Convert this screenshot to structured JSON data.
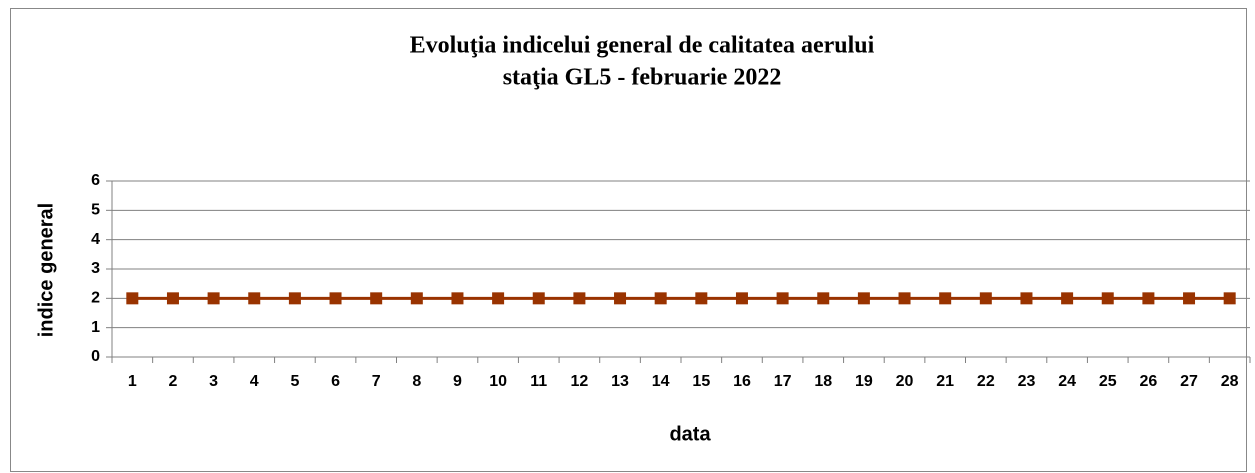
{
  "chart_data": {
    "type": "line",
    "title": [
      "Evoluţia indicelui general de calitatea aerului",
      "staţia GL5 - februarie 2022"
    ],
    "x_label": "data",
    "y_label": "indice general",
    "categories": [
      "1",
      "2",
      "3",
      "4",
      "5",
      "6",
      "7",
      "8",
      "9",
      "10",
      "11",
      "12",
      "13",
      "14",
      "15",
      "16",
      "17",
      "18",
      "19",
      "20",
      "21",
      "22",
      "23",
      "24",
      "25",
      "26",
      "27",
      "28"
    ],
    "series": [
      {
        "name": "indice general",
        "color": "#993300",
        "values": [
          2,
          2,
          2,
          2,
          2,
          2,
          2,
          2,
          2,
          2,
          2,
          2,
          2,
          2,
          2,
          2,
          2,
          2,
          2,
          2,
          2,
          2,
          2,
          2,
          2,
          2,
          2,
          2
        ]
      }
    ],
    "ylim": [
      0,
      6
    ],
    "yticks": [
      0,
      1,
      2,
      3,
      4,
      5,
      6
    ],
    "grid": true,
    "legend": false
  }
}
